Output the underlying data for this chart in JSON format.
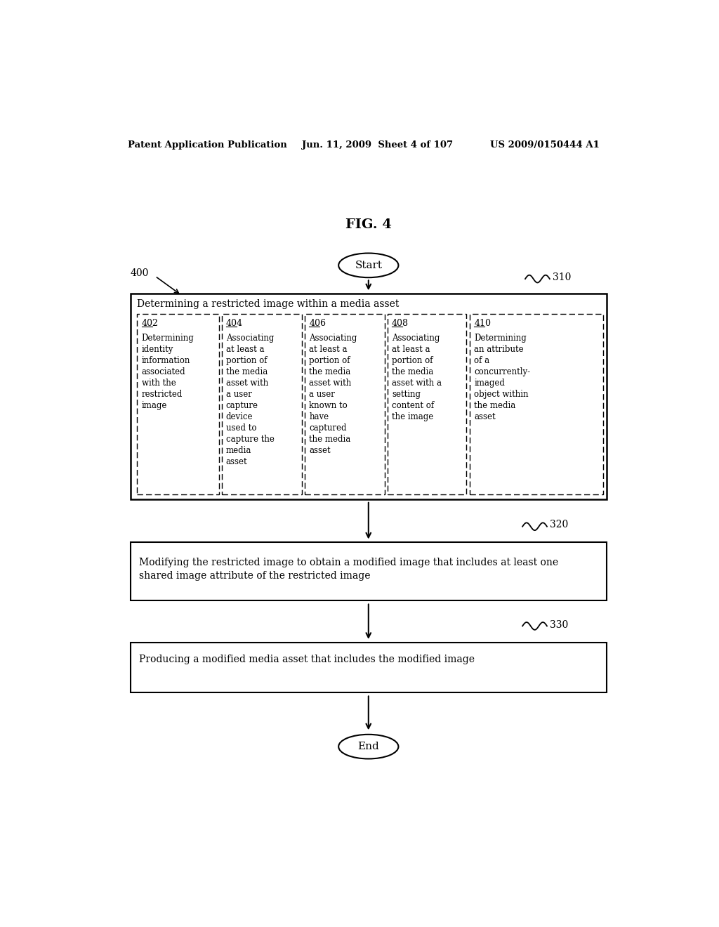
{
  "header_left": "Patent Application Publication",
  "header_mid": "Jun. 11, 2009  Sheet 4 of 107",
  "header_right": "US 2009/0150444 A1",
  "fig_label": "FIG. 4",
  "start_label": "Start",
  "end_label": "End",
  "label_400": "400",
  "label_310": "310",
  "label_320": "320",
  "label_330": "330",
  "box_310_title": "Determining a restricted image within a media asset",
  "sub_boxes": [
    {
      "id": "402",
      "text": "Determining\nidentity\ninformation\nassociated\nwith the\nrestricted\nimage"
    },
    {
      "id": "404",
      "text": "Associating\nat least a\nportion of\nthe media\nasset with\na user\ncapture\ndevice\nused to\ncapture the\nmedia\nasset"
    },
    {
      "id": "406",
      "text": "Associating\nat least a\nportion of\nthe media\nasset with\na user\nknown to\nhave\ncaptured\nthe media\nasset"
    },
    {
      "id": "408",
      "text": "Associating\nat least a\nportion of\nthe media\nasset with a\nsetting\ncontent of\nthe image"
    },
    {
      "id": "410",
      "text": "Determining\nan attribute\nof a\nconcurrently-\nimaged\nobject within\nthe media\nasset"
    }
  ],
  "box_320_text": "Modifying the restricted image to obtain a modified image that includes at least one\nshared image attribute of the restricted image",
  "box_330_text": "Producing a modified media asset that includes the modified image",
  "bg_color": "#ffffff",
  "text_color": "#000000"
}
